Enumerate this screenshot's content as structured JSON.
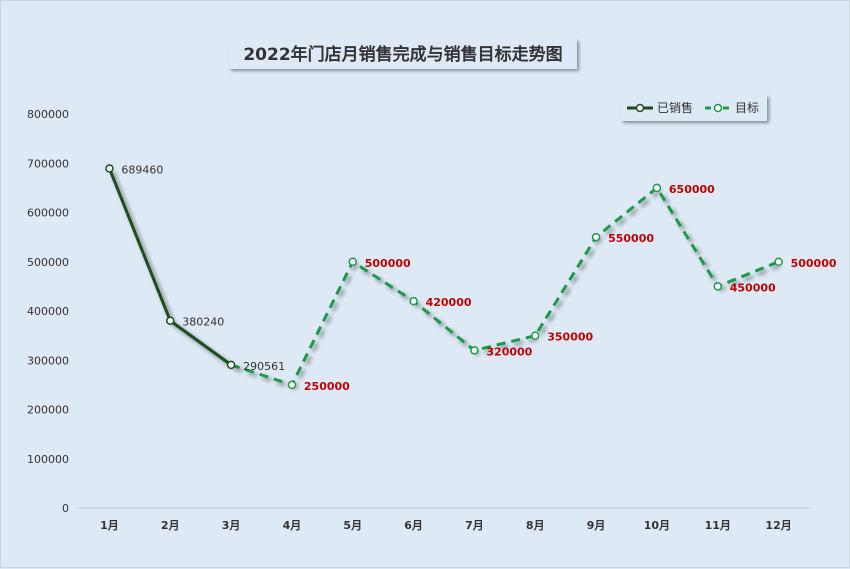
{
  "chart_data": {
    "type": "line",
    "title": "2022年门店月销售完成与销售目标走势图",
    "categories": [
      "1月",
      "2月",
      "3月",
      "4月",
      "5月",
      "6月",
      "7月",
      "8月",
      "9月",
      "10月",
      "11月",
      "12月"
    ],
    "series": [
      {
        "name": "已销售",
        "values": [
          689460,
          380240,
          290561,
          null,
          null,
          null,
          null,
          null,
          null,
          null,
          null,
          null
        ]
      },
      {
        "name": "目标",
        "values": [
          null,
          null,
          290561,
          250000,
          500000,
          420000,
          320000,
          350000,
          550000,
          650000,
          450000,
          500000
        ]
      }
    ],
    "data_labels": {
      "actual": [
        "689460",
        "380240",
        "290561"
      ],
      "target": [
        "250000",
        "500000",
        "420000",
        "320000",
        "350000",
        "550000",
        "650000",
        "450000",
        "500000"
      ]
    },
    "y_ticks": [
      "0",
      "100000",
      "200000",
      "300000",
      "400000",
      "500000",
      "600000",
      "700000",
      "800000"
    ],
    "ylim": [
      0,
      800000
    ],
    "xlabel": "",
    "ylabel": "",
    "grid": false,
    "legend_position": "top-right"
  },
  "colors": {
    "actual_line": "#1e4d1e",
    "target_line": "#1f9a4a",
    "target_label": "#c00000",
    "background": "#dde9f5"
  }
}
